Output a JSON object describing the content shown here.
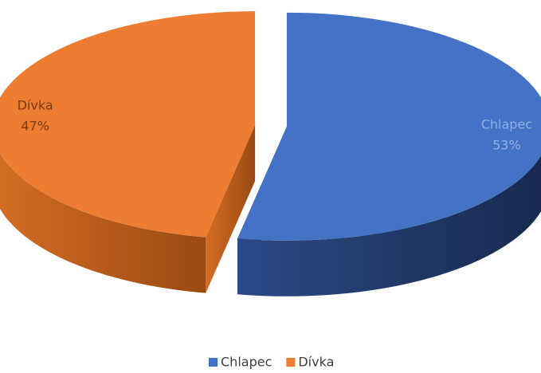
{
  "chart_data": {
    "type": "pie",
    "three_d": true,
    "exploded": true,
    "categories": [
      "Chlapec",
      "Dívka"
    ],
    "values": [
      53,
      47
    ],
    "value_labels": [
      "53%",
      "47%"
    ],
    "colors": [
      "#4472c4",
      "#ed7d31"
    ],
    "legend": "bottom"
  }
}
